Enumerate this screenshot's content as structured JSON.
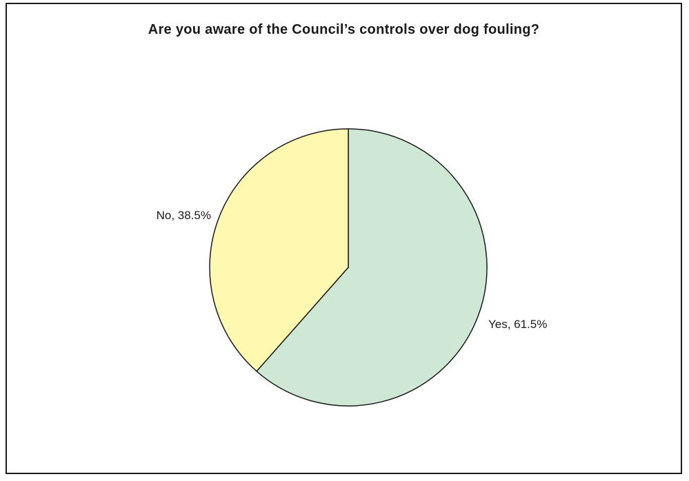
{
  "chart_data": {
    "type": "pie",
    "title": "Are you aware of the Council’s controls over dog fouling?",
    "slices": [
      {
        "label": "Yes",
        "value": 61.5,
        "display": "Yes, 61.5%",
        "color": "#cfe8d5"
      },
      {
        "label": "No",
        "value": 38.5,
        "display": "No, 38.5%",
        "color": "#fff8b0"
      }
    ],
    "start_angle_deg": 0,
    "direction": "clockwise",
    "legend": "none",
    "outline_color": "#1a1a1a"
  }
}
